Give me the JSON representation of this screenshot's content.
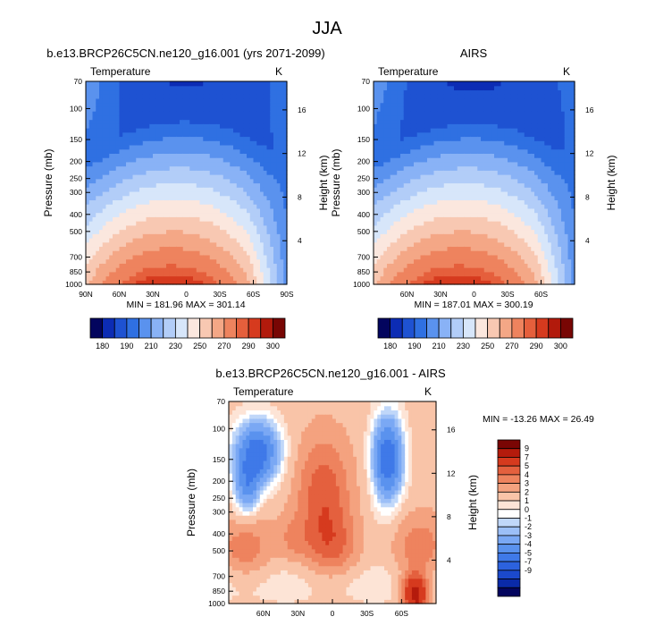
{
  "figure_title": "JJA",
  "chart_data": [
    {
      "type": "heatmap",
      "panel": "model",
      "title": "b.e13.BRCP26C5CN.ne120_g16.001 (yrs 2071-2099)",
      "left_label": "Temperature",
      "units": "K",
      "ylabel": "Pressure (mb)",
      "ylabel_right": "Height (km)",
      "pressure_ticks": [
        "70",
        "100",
        "150",
        "200",
        "250",
        "300",
        "400",
        "500",
        "700",
        "850",
        "1000"
      ],
      "height_ticks": [
        "16",
        "12",
        "8",
        "4"
      ],
      "lat_ticks": [
        "90N",
        "60N",
        "30N",
        "0",
        "30S",
        "60S",
        "90S"
      ],
      "xlim": [
        90,
        -90
      ],
      "ylim": [
        1000,
        70
      ],
      "min_max_text": "MIN = 181.96   MAX = 301.14",
      "min": 181.96,
      "max": 301.14,
      "colorbar_labels": [
        "180",
        "190",
        "210",
        "230",
        "250",
        "270",
        "290",
        "300"
      ],
      "colorbar_levels": [
        180,
        185,
        190,
        200,
        210,
        220,
        230,
        240,
        250,
        260,
        270,
        280,
        290,
        295,
        300
      ],
      "zlim": [
        180,
        300
      ]
    },
    {
      "type": "heatmap",
      "panel": "obs",
      "title": "AIRS",
      "left_label": "Temperature",
      "units": "K",
      "ylabel": "Pressure (mb)",
      "ylabel_right": "Height (km)",
      "pressure_ticks": [
        "70",
        "100",
        "150",
        "200",
        "250",
        "300",
        "400",
        "500",
        "700",
        "850",
        "1000"
      ],
      "height_ticks": [
        "16",
        "12",
        "8",
        "4"
      ],
      "lat_ticks": [
        "60N",
        "30N",
        "0",
        "30S",
        "60S"
      ],
      "xlim": [
        90,
        -90
      ],
      "ylim": [
        1000,
        70
      ],
      "min_max_text": "MIN = 187.01   MAX = 300.19",
      "min": 187.01,
      "max": 300.19,
      "colorbar_labels": [
        "180",
        "190",
        "210",
        "230",
        "250",
        "270",
        "290",
        "300"
      ],
      "colorbar_levels": [
        180,
        185,
        190,
        200,
        210,
        220,
        230,
        240,
        250,
        260,
        270,
        280,
        290,
        295,
        300
      ],
      "zlim": [
        180,
        300
      ]
    },
    {
      "type": "heatmap",
      "panel": "diff",
      "title": "b.e13.BRCP26C5CN.ne120_g16.001 - AIRS",
      "left_label": "Temperature",
      "units": "K",
      "ylabel": "Pressure (mb)",
      "ylabel_right": "Height (km)",
      "pressure_ticks": [
        "70",
        "100",
        "150",
        "200",
        "250",
        "300",
        "400",
        "500",
        "700",
        "850",
        "1000"
      ],
      "height_ticks": [
        "16",
        "12",
        "8",
        "4"
      ],
      "lat_ticks": [
        "60N",
        "30N",
        "0",
        "30S",
        "60S"
      ],
      "xlim": [
        90,
        -90
      ],
      "ylim": [
        1000,
        70
      ],
      "min_max_text": "MIN = -13.26   MAX = 26.49",
      "min": -13.26,
      "max": 26.49,
      "colorbar_labels": [
        "9",
        "7",
        "5",
        "4",
        "3",
        "2",
        "1",
        "0",
        "-1",
        "-2",
        "-3",
        "-4",
        "-5",
        "-7",
        "-9"
      ],
      "zlim": [
        -9,
        9
      ]
    }
  ],
  "colors": {
    "temp_scale": [
      "#03055e",
      "#0c2cb4",
      "#1e52d2",
      "#2f70e2",
      "#5a92ee",
      "#89b2f6",
      "#b2cdf8",
      "#d7e6fa",
      "#fbe7de",
      "#f8c8b2",
      "#f4a786",
      "#ee835e",
      "#e55f3c",
      "#d63a1e",
      "#b21a0c",
      "#780604"
    ],
    "diff_scale": [
      "#03055e",
      "#0a2aa9",
      "#1b49cc",
      "#2c62de",
      "#3f79e8",
      "#5a92ee",
      "#7aa8f4",
      "#9cbff7",
      "#c0d7f9",
      "#ffffff",
      "#fde4d6",
      "#f9c4a8",
      "#f4a27f",
      "#ee835e",
      "#e4603e",
      "#d63a1e",
      "#b41b0c",
      "#7a0604"
    ]
  }
}
